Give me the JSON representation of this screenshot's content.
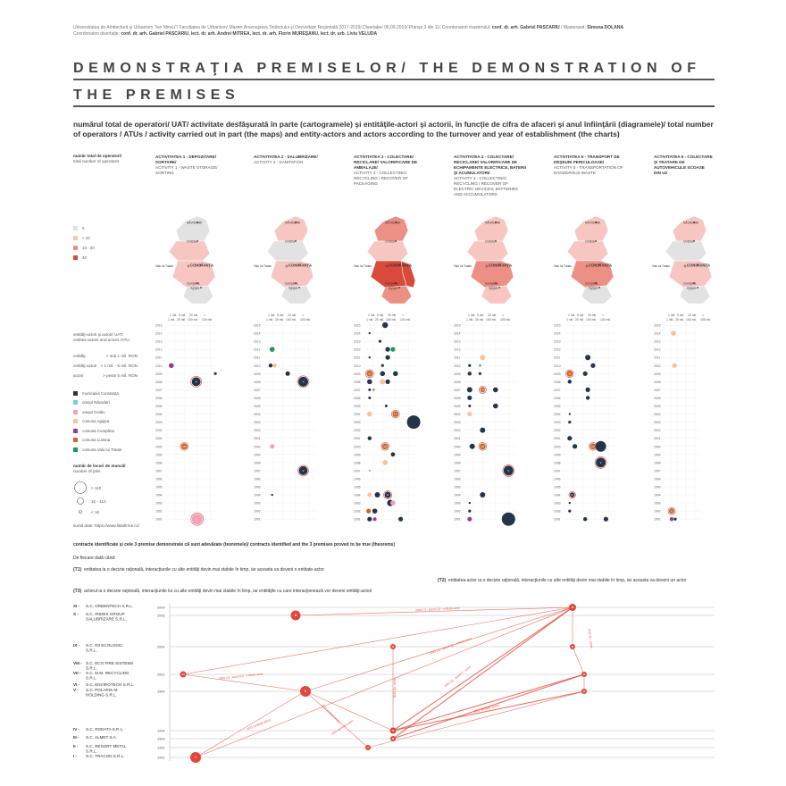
{
  "header": {
    "credits_line1": "Universitatea de Arhitectură şi Urbanism \"Ion Mincu\"/ Facultatea de Urbanism/ Master Amenajarea Teritoriului şi Dezvoltare Regională 2017-2019/ Disertaţie/ 06.09.2019/ Planşa 3 din 11/ Coordonatori masterului:",
    "credits_coord": "conf. dr. arh. Gabriel PASCARIU",
    "credits_masterand_label": "/ Masterand:",
    "credits_masterand": "Simona DOLANA",
    "credits_line2_label": "Coordonatori disertaţie:",
    "credits_line2": "conf. dr. arh. Gabriel PASCARIU, lect. dr. arh. Andrei MITREA, lect. dr. arh. Florin MUREŞANU, lect. dr. urb. Liviu VELUDA",
    "title": "DEMONSTRAŢIA PREMISELOR/ THE DEMONSTRATION OF THE PREMISES",
    "subtitle": "numărul total de operatori/ UAT/ activitate desfăşurată în parte (cartogramele) şi entităţile-actori şi actorii, în funcţie de cifra de afaceri şi anul înfiinţării (diagramele)/ total number of operators / ATUs / activity carried out in part (the maps) and entity-actors and actors according to the turnover and year of establishment (the charts)"
  },
  "legend": {
    "operators_title": "număr total de operatori/",
    "operators_sub": "total number of operators",
    "classes": [
      {
        "label": "0",
        "color": "#e2e2e2"
      },
      {
        "label": "< 10",
        "color": "#f7c6c0"
      },
      {
        "label": "10 - 20",
        "color": "#ec8f84"
      },
      {
        "label": "40",
        "color": "#d94a3a"
      }
    ],
    "entities_title": "entităţi-actori şi actori/ UAT/ entities-actors and actors /ATU",
    "entity_rows": [
      {
        "label": "entităţi",
        "value": "< sub 1 mil. RON"
      },
      {
        "label": "entităţi-actori",
        "value": "> 1 mil. - 5 mil. RON"
      },
      {
        "label": "actori",
        "value": "> peste 5 mil. RON"
      }
    ],
    "uat": [
      {
        "label": "municipiul Constanţa",
        "color": "#243549"
      },
      {
        "label": "oraşul Năvodari",
        "color": "#7cc9e6"
      },
      {
        "label": "oraşul Ovidiu",
        "color": "#f2a1b8"
      },
      {
        "label": "comuna Agigea",
        "color": "#f7c39a"
      },
      {
        "label": "comuna Cumpăna",
        "color": "#9c3c8c"
      },
      {
        "label": "comuna Lumina",
        "color": "#c56a2e"
      },
      {
        "label": "comuna Valu lui Traian",
        "color": "#1e9a5a"
      }
    ],
    "jobs_title": "număr de locuri de muncă/",
    "jobs_sub": "number of jobs",
    "jobs": [
      {
        "label": "> 110"
      },
      {
        "label": "10 - 110"
      },
      {
        "label": "< 10"
      }
    ],
    "source": "sursă date: https://www.listafirme.ro/"
  },
  "activities": [
    {
      "title": "ACTIVITATEA 1 - DEPOZITARE/ SORTARE/",
      "en": "ACTIVITY 1 - WASTE STORAGE/ SORTING"
    },
    {
      "title": "ACTIVITATEA 2 - SALUBRIZARE/",
      "en": "ACTIVITY 2 - SANITATION"
    },
    {
      "title": "ACTIVITATEA 3 - COLECTARE/ RECICLARE/ VALORIFICARE DE AMBALAJE/",
      "en": "ACTIVITY 3 - COLLECTING/ RECYCLING / RECOVER OF PACKAGING"
    },
    {
      "title": "ACTIVITATEA 4 - COLECTARE/ RECICLARE/ VALORIFICARE DE ECHIPAMENTE ELECTRICE, BATERII ŞI ACUMULATORI/",
      "en": "ACTIVITY 4 - COLLECTING/ RECYCLING / RECOVER OF ELECTRIC DEVICES, BATTERIES AND ACCUMULATORS"
    },
    {
      "title": "ACTIVITATEA 5 - TRANSPORT DE DEŞEURI PERICULOASE/",
      "en": "ACTIVITY 5 - TRANSPORTATION OF DANGEROUS WASTE"
    },
    {
      "title": "ACTIVITATEA 6 - COLECTARE ŞI TRATARE DE AUTOVEHICULE SCOASE DIN UZ",
      "en": ""
    }
  ],
  "map_labels": {
    "navodari": "NĂVODARI",
    "ovidiu": "OVIDIU",
    "constanta": "CONSTANŢA",
    "valu": "Valu lui Traian",
    "cumpana": "Cumpăna",
    "agigea": "Agigea",
    "lumina": "Lumina"
  },
  "turnover_axis": {
    "top": [
      "1 mil.",
      "5 mil.",
      "20 mil.",
      ">"
    ],
    "bottom": [
      "1 mil.",
      "20 mil.",
      "100 mil.",
      "100 mil."
    ]
  },
  "years": [
    "2015",
    "2014",
    "2013",
    "2012",
    "2011",
    "2010",
    "2009",
    "2008",
    "2007",
    "2006",
    "2005",
    "2004",
    "2003",
    "2002",
    "2001",
    "2000",
    "1999",
    "1998",
    "1997",
    "1996",
    "1995",
    "1994",
    "1993",
    "1992",
    "1991"
  ],
  "theorems": {
    "intro": "contracte identificate şi cele 3 premise demonstrate că sunt adevărate (teoremele)/ contracts identified and the 3 premises proved to be true (theorems)",
    "def": "De fiecare dată când:",
    "t1_label": "(T1)",
    "t1": "entitatea ia o decizie raţională, interacţiunile cu alte entităţi devin mai stabile în timp, iar aceasta va deveni o entitate-actor",
    "t2_label": "(T2)",
    "t2": "entitatea-actor ia o decizie raţională, interacţiunile cu alte entităţi devin mai stabile în timp, iar aceasta va deveni un actor",
    "t3_label": "(T3)",
    "t3": "actorul ia o decizie raţională, interacţiunile lui cu alte entităţi devin mai stabile în timp, iar entităţile cu care interacţionează vor deveni entităţi-actori"
  },
  "companies": [
    {
      "num": "XI -",
      "name": "S.C. GREENTECH S.R.L.",
      "year": "2009"
    },
    {
      "num": "X -",
      "name": "S.C. IRIDEX GROUP SALUBRIZARE S.R.L.",
      "year": "2008"
    },
    {
      "num": "IX -",
      "name": "S.C. R3 ECOLOGIC S.R.L.",
      "year": "2004"
    },
    {
      "num": "VIII -",
      "name": "S.C. ECO FIRE SISTEMS S.R.L.",
      "year": ""
    },
    {
      "num": "VII -",
      "name": "S.C. M.M. RECYCLING S.R.L.",
      "year": "2001"
    },
    {
      "num": "VI -",
      "name": "S.C. ENVIROTECH S.R.L.",
      "year": ""
    },
    {
      "num": "V -",
      "name": "S.C. POLARIS M. HOLDING S.R.L.",
      "year": "1999"
    },
    {
      "num": "IV -",
      "name": "S.C. RODATA S.R.L.",
      "year": "1994"
    },
    {
      "num": "III -",
      "name": "S.C. ALMET S.A.",
      "year": "1993"
    },
    {
      "num": "II -",
      "name": "S.C. RESORT METAL S.R.L.",
      "year": "1992"
    },
    {
      "num": "I -",
      "name": "S.C. TRACON S.R.L.",
      "year": "1991"
    }
  ],
  "contract_labels": {
    "l1": "2009 (7) - actori/ (1) - entitate-actor",
    "l2": "2014 (1) - actori/ (1) - entitate-actor",
    "l3": "2001 (1) - actori/ (1) - entitate-actor",
    "l4": "2011 (entitate-actor)",
    "l5": "2011 (entitate-actor)",
    "l6": "2011 (entitate-actor)",
    "l7": "2013 (4) - actori",
    "l8": "2011 (3) - actori/ 2 - actori",
    "l9": "2011 (6) - actori",
    "l10": "2011 (entitate-actor)"
  },
  "colors": {
    "accent": "#e0473a",
    "navy": "#243549"
  }
}
